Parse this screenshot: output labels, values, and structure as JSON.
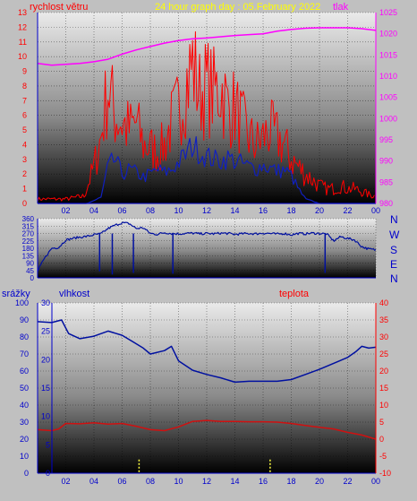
{
  "header": {
    "wind_label": "rychlost větru",
    "title": "24 hour graph day : 05.February 2022",
    "pressure_label": "tlak"
  },
  "compass": [
    "N",
    "W",
    "S",
    "E",
    "N"
  ],
  "mid_labels": {
    "rain_label": "srážky",
    "humidity_label": "vlhkost",
    "temp_label": "teplota"
  },
  "colors": {
    "gust": "#ff0000",
    "wind": "#1020c0",
    "pressure": "#ff00ff",
    "direction": "#0010a0",
    "humidity": "#0010a0",
    "temperature": "#d01010",
    "rain": "#ffff40",
    "axis_blue": "#0000cc",
    "axis_magenta": "#ff00ff",
    "axis_red": "#ff0000",
    "title": "#ffff00"
  },
  "chart_data": [
    {
      "type": "line",
      "id": "wind_pressure",
      "title": "24 hour graph day : 05.February 2022",
      "x_ticks": [
        "02",
        "04",
        "06",
        "08",
        "10",
        "12",
        "14",
        "16",
        "18",
        "20",
        "22",
        "00"
      ],
      "y_left": {
        "label": "rychlost větru",
        "range": [
          0,
          13
        ],
        "ticks": [
          0,
          1,
          2,
          3,
          4,
          5,
          6,
          7,
          8,
          9,
          10,
          11,
          12,
          13
        ]
      },
      "y_right": {
        "label": "tlak",
        "range": [
          980,
          1025
        ],
        "ticks": [
          980,
          985,
          990,
          995,
          1000,
          1005,
          1010,
          1015,
          1020,
          1025
        ]
      },
      "series": [
        {
          "name": "gust",
          "axis": "left",
          "x": [
            0,
            2,
            3.3,
            4,
            4.5,
            5,
            5.5,
            6,
            6.5,
            7,
            7.5,
            8,
            8.5,
            9,
            9.5,
            10,
            10.5,
            11,
            11.5,
            12,
            12.5,
            13,
            13.5,
            14,
            14.5,
            15,
            15.5,
            16,
            16.5,
            17,
            17.5,
            18,
            18.5,
            19,
            19.5,
            20,
            20.5,
            21,
            21.5,
            22,
            22.5,
            23,
            23.5,
            24
          ],
          "values": [
            0.3,
            0.3,
            0.5,
            2.5,
            4.5,
            8,
            6,
            5.5,
            5,
            5.5,
            4,
            3.8,
            3.5,
            4,
            5.5,
            6.5,
            8,
            9.5,
            7.5,
            8,
            7.5,
            8,
            6.5,
            6.5,
            5.5,
            4.5,
            4,
            4.5,
            5,
            4.5,
            4,
            3,
            2.5,
            2,
            1.6,
            1.2,
            1,
            1,
            1.2,
            1,
            1,
            0.8,
            0.6,
            0.5
          ]
        },
        {
          "name": "wind",
          "axis": "left",
          "x": [
            0,
            3.5,
            4.5,
            5,
            5.5,
            6,
            6.5,
            7,
            7.5,
            8,
            8.5,
            9,
            9.5,
            10,
            10.5,
            11,
            11.5,
            12,
            12.5,
            13,
            13.5,
            14,
            14.5,
            15,
            15.5,
            16,
            16.5,
            17,
            17.5,
            18,
            18.5,
            19,
            20,
            24
          ],
          "values": [
            0,
            0,
            0.4,
            2.5,
            3,
            2,
            2.3,
            2.1,
            1.8,
            2,
            2.3,
            2.1,
            2.3,
            2.8,
            3.3,
            4,
            3.5,
            3.2,
            3,
            2.9,
            3.1,
            2.9,
            2.7,
            2.5,
            2.4,
            2.6,
            2.4,
            2.2,
            2.3,
            1.9,
            1,
            0.3,
            0,
            0
          ]
        },
        {
          "name": "pressure",
          "axis": "right",
          "x": [
            0,
            1,
            2,
            3,
            4,
            5,
            6,
            7,
            8,
            9,
            10,
            11,
            12,
            13,
            14,
            15,
            16,
            17,
            18,
            19,
            20,
            21,
            22,
            23,
            24
          ],
          "values": [
            1013,
            1012.6,
            1012.8,
            1013,
            1013.4,
            1014,
            1015.2,
            1016.2,
            1017,
            1017.8,
            1018.4,
            1018.8,
            1019,
            1019.3,
            1019.6,
            1019.8,
            1020,
            1020.6,
            1021,
            1021.3,
            1021.4,
            1021.4,
            1021.4,
            1021.2,
            1020.8
          ]
        }
      ]
    },
    {
      "type": "scatter",
      "id": "wind_direction",
      "x_ticks": [
        "02",
        "04",
        "06",
        "08",
        "10",
        "12",
        "14",
        "16",
        "18",
        "20",
        "22",
        "00"
      ],
      "y_left": {
        "range": [
          0,
          360
        ],
        "ticks": [
          0,
          45,
          90,
          135,
          180,
          225,
          270,
          315,
          360
        ]
      },
      "series": [
        {
          "name": "direction",
          "x": [
            0,
            0.5,
            1,
            1.5,
            2,
            2.5,
            3,
            3.5,
            4,
            4.5,
            5,
            5.5,
            6,
            6.5,
            7,
            7.5,
            8,
            8.5,
            9,
            9.5,
            10,
            10.5,
            11,
            11.5,
            12,
            12.5,
            13,
            13.5,
            14,
            14.5,
            15,
            15.5,
            16,
            16.5,
            17,
            17.5,
            18,
            18.5,
            19,
            19.5,
            20,
            20.5,
            21,
            21.5,
            22,
            22.5,
            23,
            23.5,
            24
          ],
          "values": [
            40,
            120,
            180,
            185,
            230,
            240,
            248,
            252,
            262,
            268,
            300,
            320,
            335,
            330,
            300,
            305,
            270,
            265,
            275,
            270,
            268,
            270,
            272,
            268,
            270,
            268,
            272,
            270,
            265,
            268,
            270,
            268,
            272,
            270,
            266,
            270,
            262,
            270,
            268,
            272,
            270,
            268,
            225,
            250,
            240,
            230,
            190,
            175,
            170
          ]
        }
      ]
    },
    {
      "type": "line",
      "id": "humidity_temperature",
      "x_ticks": [
        "02",
        "04",
        "06",
        "08",
        "10",
        "12",
        "14",
        "16",
        "18",
        "20",
        "22",
        "00"
      ],
      "y_rain": {
        "label": "srážky",
        "range": [
          0,
          100
        ],
        "ticks": [
          0,
          10,
          20,
          30,
          40,
          50,
          60,
          70,
          80,
          90,
          100
        ]
      },
      "y_humidity": {
        "label": "vlhkost",
        "range": [
          0,
          30
        ],
        "ticks": [
          0,
          5,
          10,
          15,
          20,
          25,
          30
        ]
      },
      "y_temp": {
        "label": "teplota",
        "range": [
          -10,
          40
        ],
        "ticks": [
          -10,
          -5,
          0,
          5,
          10,
          15,
          20,
          25,
          30,
          35,
          40
        ]
      },
      "series": [
        {
          "name": "humidity",
          "axis": "rain",
          "x": [
            0,
            1,
            1.7,
            2.2,
            3,
            4,
            5,
            6,
            7,
            7.5,
            8,
            9,
            9.5,
            10,
            11,
            12,
            13,
            14,
            15,
            16,
            17,
            18,
            19,
            20,
            21,
            22,
            22.6,
            23,
            23.5,
            24
          ],
          "values": [
            89,
            88.5,
            90,
            82,
            79,
            80.5,
            83.5,
            81,
            76,
            73.5,
            70,
            72,
            74.5,
            66,
            60.5,
            58,
            56,
            53.5,
            54,
            54,
            54,
            55,
            58,
            61,
            64.5,
            68,
            71.5,
            74.5,
            73.5,
            74
          ]
        },
        {
          "name": "temperature",
          "axis": "temp",
          "x": [
            0,
            1,
            1.5,
            2,
            3,
            4,
            5,
            6,
            7,
            8,
            9,
            10,
            11,
            12,
            13,
            14,
            15,
            16,
            17,
            18,
            19,
            20,
            21,
            22,
            23,
            24
          ],
          "values": [
            2.8,
            2.5,
            3,
            4.6,
            4.5,
            4.8,
            4.4,
            4.6,
            3.8,
            2.8,
            2.5,
            3.6,
            5.2,
            5.5,
            5.2,
            5.2,
            5.1,
            5.1,
            5,
            4.6,
            4,
            3.5,
            3,
            2,
            1.2,
            0
          ]
        },
        {
          "name": "rain",
          "axis": "rain",
          "type": "bar",
          "x": [
            7.2,
            16.5
          ],
          "values": [
            8,
            8
          ]
        }
      ]
    }
  ]
}
